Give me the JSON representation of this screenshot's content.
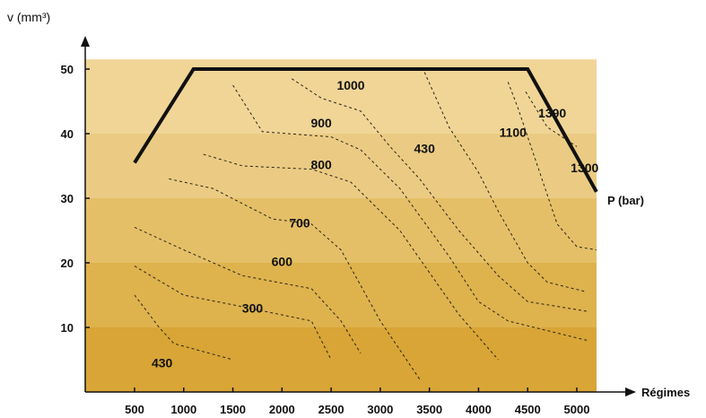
{
  "chart_data": {
    "type": "contour",
    "ylabel": "v (mm³)",
    "xlabel": "Régimes",
    "envelope_label": "P (bar)",
    "x_ticks": [
      "500",
      "1000",
      "1500",
      "2000",
      "2500",
      "3000",
      "3500",
      "4000",
      "4500",
      "5000"
    ],
    "y_ticks": [
      "10",
      "20",
      "30",
      "40",
      "50"
    ],
    "xlim": [
      0,
      5300
    ],
    "ylim": [
      -10,
      52
    ],
    "bands": [
      {
        "from": -10,
        "to": 10,
        "color": "#d8a536"
      },
      {
        "from": 10,
        "to": 20,
        "color": "#deb24d"
      },
      {
        "from": 20,
        "to": 30,
        "color": "#e4bf67"
      },
      {
        "from": 30,
        "to": 40,
        "color": "#ebcb83"
      },
      {
        "from": 40,
        "to": 51.5,
        "color": "#f0d597"
      }
    ],
    "envelope": [
      [
        500,
        35.5
      ],
      [
        1100,
        50
      ],
      [
        4500,
        50
      ],
      [
        5200,
        31
      ]
    ],
    "contours": [
      {
        "label": "430",
        "label_at": [
          780,
          3.8
        ],
        "points": [
          [
            500,
            15
          ],
          [
            750,
            10
          ],
          [
            900,
            7.5
          ],
          [
            1500,
            5
          ]
        ]
      },
      {
        "label": "300",
        "label_at": [
          1700,
          12.3
        ],
        "points": [
          [
            500,
            19.5
          ],
          [
            1000,
            15
          ],
          [
            1500,
            13.5
          ],
          [
            2300,
            11
          ],
          [
            2500,
            5
          ]
        ]
      },
      {
        "label": "600",
        "label_at": [
          2000,
          19.5
        ],
        "points": [
          [
            500,
            25.5
          ],
          [
            1000,
            22
          ],
          [
            1600,
            18
          ],
          [
            2300,
            16
          ],
          [
            2600,
            11
          ],
          [
            2800,
            6
          ]
        ]
      },
      {
        "label": "700",
        "label_at": [
          2180,
          25.5
        ],
        "points": [
          [
            850,
            33
          ],
          [
            1300,
            31.5
          ],
          [
            1900,
            26.8
          ],
          [
            2300,
            26
          ],
          [
            2600,
            22
          ],
          [
            3000,
            11
          ],
          [
            3400,
            2
          ]
        ]
      },
      {
        "label": "800",
        "label_at": [
          2400,
          34.5
        ],
        "points": [
          [
            1200,
            36.8
          ],
          [
            1600,
            35
          ],
          [
            2300,
            34.5
          ],
          [
            2700,
            32.5
          ],
          [
            3200,
            25
          ],
          [
            3800,
            12
          ],
          [
            4200,
            5
          ]
        ]
      },
      {
        "label": "900",
        "label_at": [
          2400,
          41
        ],
        "points": [
          [
            1500,
            47.5
          ],
          [
            1800,
            40.3
          ],
          [
            2500,
            39.5
          ],
          [
            2800,
            37.5
          ],
          [
            3200,
            31.5
          ],
          [
            3700,
            21
          ],
          [
            4000,
            14
          ],
          [
            4300,
            11
          ],
          [
            5100,
            8
          ]
        ]
      },
      {
        "label": "1000",
        "label_at": [
          2700,
          46.8
        ],
        "points": [
          [
            2100,
            48.5
          ],
          [
            2400,
            45.5
          ],
          [
            2800,
            43.5
          ],
          [
            3100,
            38
          ],
          [
            3400,
            33
          ],
          [
            3800,
            25
          ],
          [
            4200,
            18
          ],
          [
            4500,
            14
          ],
          [
            5100,
            12.5
          ]
        ]
      },
      {
        "label": "430",
        "label_at": [
          3450,
          37
        ],
        "points": [
          [
            3450,
            49.5
          ],
          [
            3700,
            41
          ],
          [
            4000,
            34
          ],
          [
            4200,
            28
          ],
          [
            4500,
            20
          ],
          [
            4700,
            17
          ],
          [
            5100,
            15.5
          ]
        ]
      },
      {
        "label": "1100",
        "label_at": [
          4350,
          39.5
        ],
        "points": [
          [
            4300,
            48
          ],
          [
            4400,
            44
          ],
          [
            4600,
            35
          ],
          [
            4800,
            26
          ],
          [
            5000,
            22.5
          ],
          [
            5200,
            22
          ]
        ]
      },
      {
        "label": "1390",
        "label_at": [
          4750,
          42.5
        ],
        "points": [
          [
            4480,
            46.5
          ],
          [
            4700,
            41
          ],
          [
            5000,
            38
          ]
        ]
      },
      {
        "label": "1300",
        "label_at": [
          5080,
          34
        ]
      }
    ]
  }
}
